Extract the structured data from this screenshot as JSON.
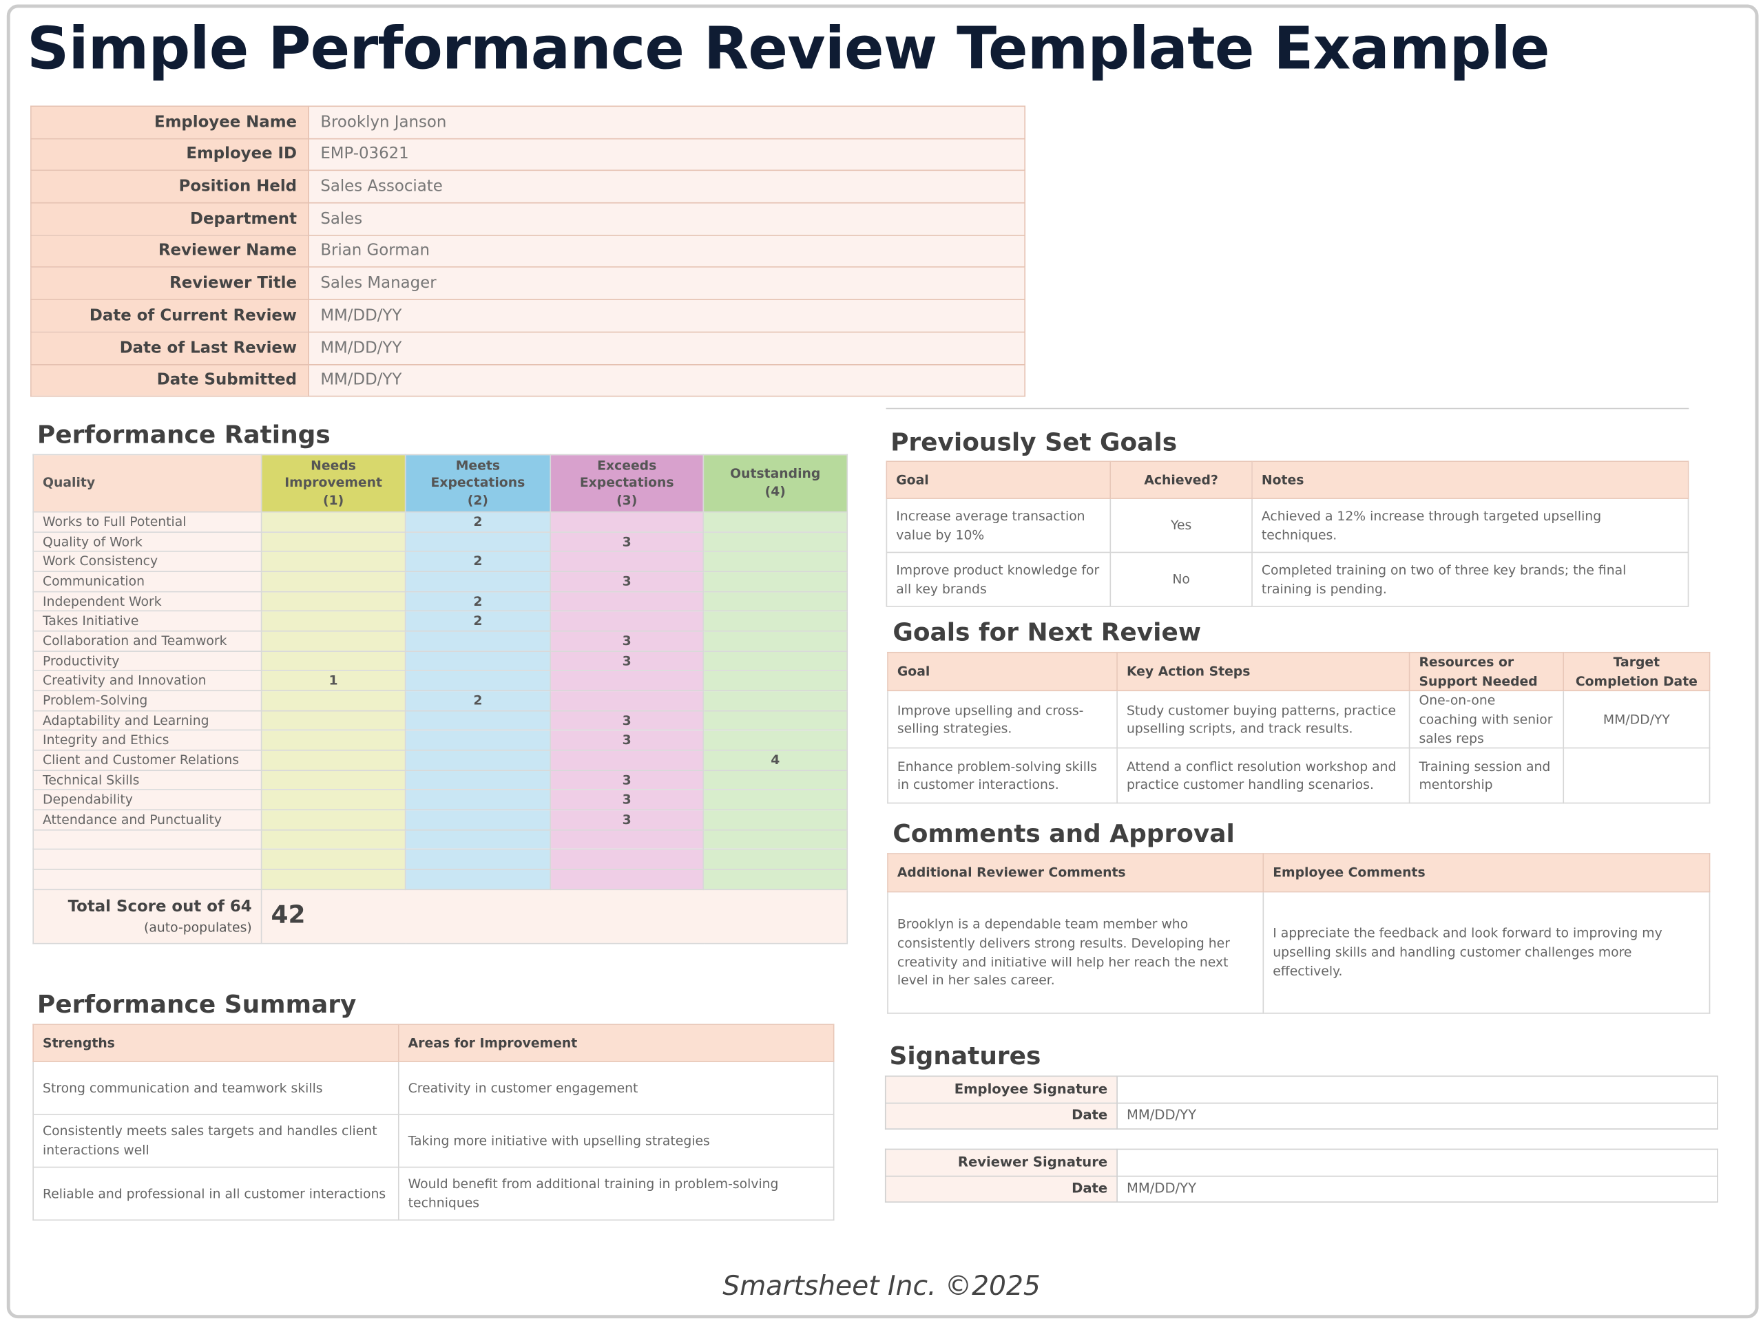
{
  "title": "Simple Performance Review Template Example",
  "employee_info": {
    "rows": [
      {
        "label": "Employee Name",
        "value": "Brooklyn Janson"
      },
      {
        "label": "Employee ID",
        "value": "EMP-03621"
      },
      {
        "label": "Position Held",
        "value": "Sales Associate"
      },
      {
        "label": "Department",
        "value": "Sales"
      },
      {
        "label": "Reviewer Name",
        "value": "Brian Gorman"
      },
      {
        "label": "Reviewer Title",
        "value": "Sales Manager"
      },
      {
        "label": "Date of Current Review",
        "value": "MM/DD/YY"
      },
      {
        "label": "Date of Last Review",
        "value": "MM/DD/YY"
      },
      {
        "label": "Date Submitted",
        "value": "MM/DD/YY"
      }
    ]
  },
  "ratings": {
    "title": "Performance Ratings",
    "quality_header": "Quality",
    "levels": [
      {
        "name": "Needs Improvement",
        "scale": "(1)"
      },
      {
        "name": "Meets Expectations",
        "scale": "(2)"
      },
      {
        "name": "Exceeds Expectations",
        "scale": "(3)"
      },
      {
        "name": "Outstanding",
        "scale": "(4)"
      }
    ],
    "rows": [
      {
        "quality": "Works to Full Potential",
        "scores": [
          null,
          2,
          null,
          null
        ]
      },
      {
        "quality": "Quality of Work",
        "scores": [
          null,
          null,
          3,
          null
        ]
      },
      {
        "quality": "Work Consistency",
        "scores": [
          null,
          2,
          null,
          null
        ]
      },
      {
        "quality": "Communication",
        "scores": [
          null,
          null,
          3,
          null
        ]
      },
      {
        "quality": "Independent Work",
        "scores": [
          null,
          2,
          null,
          null
        ]
      },
      {
        "quality": "Takes Initiative",
        "scores": [
          null,
          2,
          null,
          null
        ]
      },
      {
        "quality": "Collaboration and Teamwork",
        "scores": [
          null,
          null,
          3,
          null
        ]
      },
      {
        "quality": "Productivity",
        "scores": [
          null,
          null,
          3,
          null
        ]
      },
      {
        "quality": "Creativity and Innovation",
        "scores": [
          1,
          null,
          null,
          null
        ]
      },
      {
        "quality": "Problem-Solving",
        "scores": [
          null,
          2,
          null,
          null
        ]
      },
      {
        "quality": "Adaptability and Learning",
        "scores": [
          null,
          null,
          3,
          null
        ]
      },
      {
        "quality": "Integrity and Ethics",
        "scores": [
          null,
          null,
          3,
          null
        ]
      },
      {
        "quality": "Client and Customer Relations",
        "scores": [
          null,
          null,
          null,
          4
        ]
      },
      {
        "quality": "Technical Skills",
        "scores": [
          null,
          null,
          3,
          null
        ]
      },
      {
        "quality": "Dependability",
        "scores": [
          null,
          null,
          3,
          null
        ]
      },
      {
        "quality": "Attendance and Punctuality",
        "scores": [
          null,
          null,
          3,
          null
        ]
      }
    ],
    "total_label": "Total Score out of 64",
    "total_note": "(auto-populates)",
    "total": 42
  },
  "summary": {
    "title": "Performance Summary",
    "headers": [
      "Strengths",
      "Areas for Improvement"
    ],
    "rows": [
      [
        "Strong communication and teamwork skills",
        "Creativity in customer engagement"
      ],
      [
        "Consistently meets sales targets and handles client interactions well",
        "Taking more initiative with upselling strategies"
      ],
      [
        "Reliable and professional in all customer interactions",
        "Would benefit from additional training in problem-solving techniques"
      ]
    ]
  },
  "previous_goals": {
    "title": "Previously Set Goals",
    "headers": [
      "Goal",
      "Achieved?",
      "Notes"
    ],
    "rows": [
      [
        "Increase average transaction value by 10%",
        "Yes",
        "Achieved a 12% increase through targeted upselling techniques."
      ],
      [
        "Improve product knowledge for all key brands",
        "No",
        "Completed training on two of three key brands; the final training is pending."
      ]
    ]
  },
  "next_goals": {
    "title": "Goals for Next Review",
    "headers": [
      "Goal",
      "Key Action Steps",
      "Resources or Support Needed",
      "Target Completion Date"
    ],
    "rows": [
      [
        "Improve upselling and cross-selling strategies.",
        "Study customer buying patterns, practice upselling scripts, and track results.",
        "One-on-one coaching with senior sales reps",
        "MM/DD/YY"
      ],
      [
        "Enhance problem-solving skills in customer interactions.",
        "Attend a conflict resolution workshop and practice customer handling scenarios.",
        "Training session and mentorship",
        null
      ]
    ]
  },
  "comments": {
    "title": "Comments and Approval",
    "headers": [
      "Additional Reviewer Comments",
      "Employee Comments"
    ],
    "rows": [
      [
        "Brooklyn is a dependable team member who consistently delivers strong results. Developing her creativity and initiative will help her reach the next level in her sales career.",
        "I appreciate the feedback and look forward to improving my upselling skills and handling customer challenges more effectively."
      ]
    ]
  },
  "signatures": {
    "title": "Signatures",
    "blocks": [
      [
        {
          "label": "Employee Signature",
          "value": null
        },
        {
          "label": "Date",
          "value": "MM/DD/YY"
        }
      ],
      [
        {
          "label": "Reviewer Signature",
          "value": null
        },
        {
          "label": "Date",
          "value": "MM/DD/YY"
        }
      ]
    ]
  },
  "footer": "Smartsheet Inc. ©2025"
}
